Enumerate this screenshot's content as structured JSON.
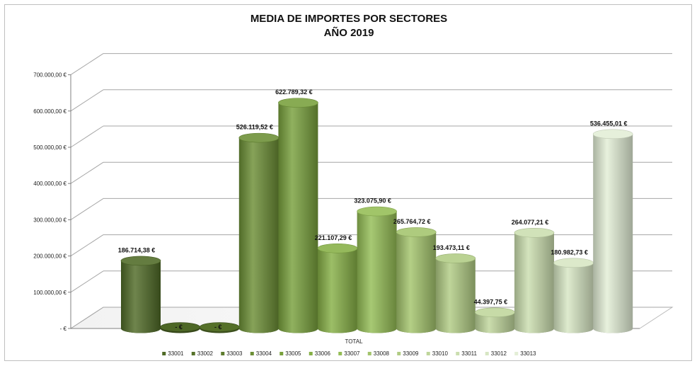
{
  "chart_data": {
    "type": "bar",
    "title": "MEDIA DE IMPORTES POR SECTORES",
    "subtitle": "AÑO 2019",
    "xlabel": "",
    "ylabel": "",
    "category": "TOTAL",
    "ylim": [
      0,
      700000
    ],
    "y_ticks": [
      {
        "value": 0,
        "label": "-   €"
      },
      {
        "value": 100000,
        "label": "100.000,00 €"
      },
      {
        "value": 200000,
        "label": "200.000,00 €"
      },
      {
        "value": 300000,
        "label": "300.000,00 €"
      },
      {
        "value": 400000,
        "label": "400.000,00 €"
      },
      {
        "value": 500000,
        "label": "500.000,00 €"
      },
      {
        "value": 600000,
        "label": "600.000,00 €"
      },
      {
        "value": 700000,
        "label": "700.000,00 €"
      }
    ],
    "grid": true,
    "legend_position": "bottom",
    "series": [
      {
        "name": "33001",
        "value": 186714.38,
        "label": "186.714,38 €",
        "color": "#4f6a26"
      },
      {
        "name": "33002",
        "value": 0,
        "label": "-   €",
        "color": "#56722a"
      },
      {
        "name": "33003",
        "value": 0,
        "label": "-   €",
        "color": "#5e7c2e"
      },
      {
        "name": "33004",
        "value": 526119.52,
        "label": "526.119,52 €",
        "color": "#6b8e35"
      },
      {
        "name": "33005",
        "value": 622789.32,
        "label": "622.789,32 €",
        "color": "#78a03c"
      },
      {
        "name": "33006",
        "value": 221107.29,
        "label": "221.107,29 €",
        "color": "#86b046"
      },
      {
        "name": "33007",
        "value": 323075.9,
        "label": "323.075,90 €",
        "color": "#94bd55"
      },
      {
        "name": "33008",
        "value": 265764.72,
        "label": "265.764,72 €",
        "color": "#a3c46c"
      },
      {
        "name": "33009",
        "value": 193473.11,
        "label": "193.473,11 €",
        "color": "#b1cc84"
      },
      {
        "name": "33010",
        "value": 44397.75,
        "label": "44.397,75 €",
        "color": "#bfd69b"
      },
      {
        "name": "33011",
        "value": 264077.21,
        "label": "264.077,21 €",
        "color": "#cbdeaf"
      },
      {
        "name": "33012",
        "value": 180982.73,
        "label": "180.982,73 €",
        "color": "#d7e6c3"
      },
      {
        "name": "33013",
        "value": 536455.01,
        "label": "536.455,01 €",
        "color": "#e3eed6"
      }
    ]
  }
}
